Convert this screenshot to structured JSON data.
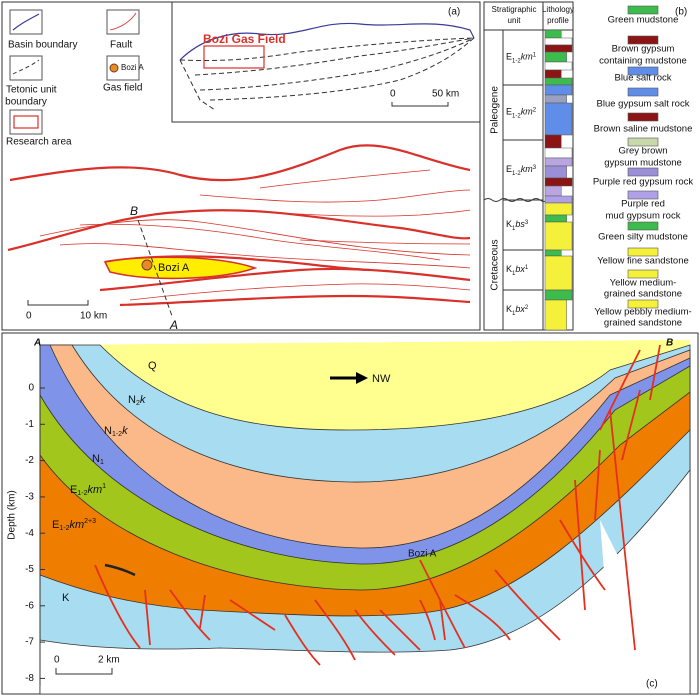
{
  "panel_a": {
    "label": "(a)",
    "legend": {
      "basin_boundary": "Basin boundary",
      "fault": "Fault",
      "tectonic_unit_boundary": [
        "Tetonic unit",
        "boundary"
      ],
      "gas_field_sample": "Bozi A",
      "gas_field": "Gas field",
      "research_area": "Research area"
    },
    "inset": {
      "title": "Bozi Gas Field",
      "scale_start": "0",
      "scale_end": "50 km"
    },
    "map": {
      "section_start": "B",
      "section_end": "A",
      "field": "Bozi A",
      "scale_start": "0",
      "scale_end": "10 km"
    }
  },
  "panel_b": {
    "label": "(b)",
    "header": {
      "unit": [
        "Stratigraphic",
        "unit"
      ],
      "profile": [
        "Lithology",
        "profile"
      ]
    },
    "eras": [
      "Paleogene",
      "Cretaceous"
    ],
    "units": [
      {
        "base": "E",
        "sub": "1-2",
        "name": "km",
        "sup": "1"
      },
      {
        "base": "E",
        "sub": "1-2",
        "name": "km",
        "sup": "2"
      },
      {
        "base": "E",
        "sub": "1-2",
        "name": "km",
        "sup": "3"
      },
      {
        "base": "K",
        "sub": "1",
        "name": "bs",
        "sup": "3"
      },
      {
        "base": "K",
        "sub": "1",
        "name": "bx",
        "sup": "1"
      },
      {
        "base": "K",
        "sub": "1",
        "name": "bx",
        "sup": "2"
      }
    ],
    "legend": [
      [
        "Green mudstone"
      ],
      [
        "Brown gypsum",
        "containing mudstone"
      ],
      [
        "Blue salt rock"
      ],
      [
        "Blue gypsum salt rock"
      ],
      [
        "Brown saline mudstone"
      ],
      [
        "Grey brown",
        "gypsum mudstone"
      ],
      [
        "Purple red gypsum rock"
      ],
      [
        "Purple red",
        "mud gypsum rock"
      ],
      [
        "Green silty mudstone"
      ],
      [
        "Yellow fine sandstone"
      ],
      [
        "Yellow medium-",
        "grained sandstone"
      ],
      [
        "Yellow pebbly medium-",
        "grained  sandstone"
      ]
    ]
  },
  "panel_c": {
    "label": "(c)",
    "section_start": "A",
    "section_end": "B",
    "direction": "NW",
    "y_axis_label": "Depth (km)",
    "depth_ticks": [
      0,
      -1,
      -2,
      -3,
      -4,
      -5,
      -6,
      -7,
      -8
    ],
    "layers": [
      {
        "base": "Q"
      },
      {
        "base": "N",
        "sub": "2",
        "name": "k"
      },
      {
        "base": "N",
        "sub": "1-2",
        "name": "k"
      },
      {
        "base": "N",
        "sub": "1"
      },
      {
        "base": "E",
        "sub": "1-2",
        "name": "km",
        "sup": "1"
      },
      {
        "base": "E",
        "sub": "1-2",
        "name": "km",
        "sup": "2+3"
      },
      {
        "base": "K"
      }
    ],
    "field": "Bozi A",
    "scale_start": "0",
    "scale_end": "2 km"
  }
}
